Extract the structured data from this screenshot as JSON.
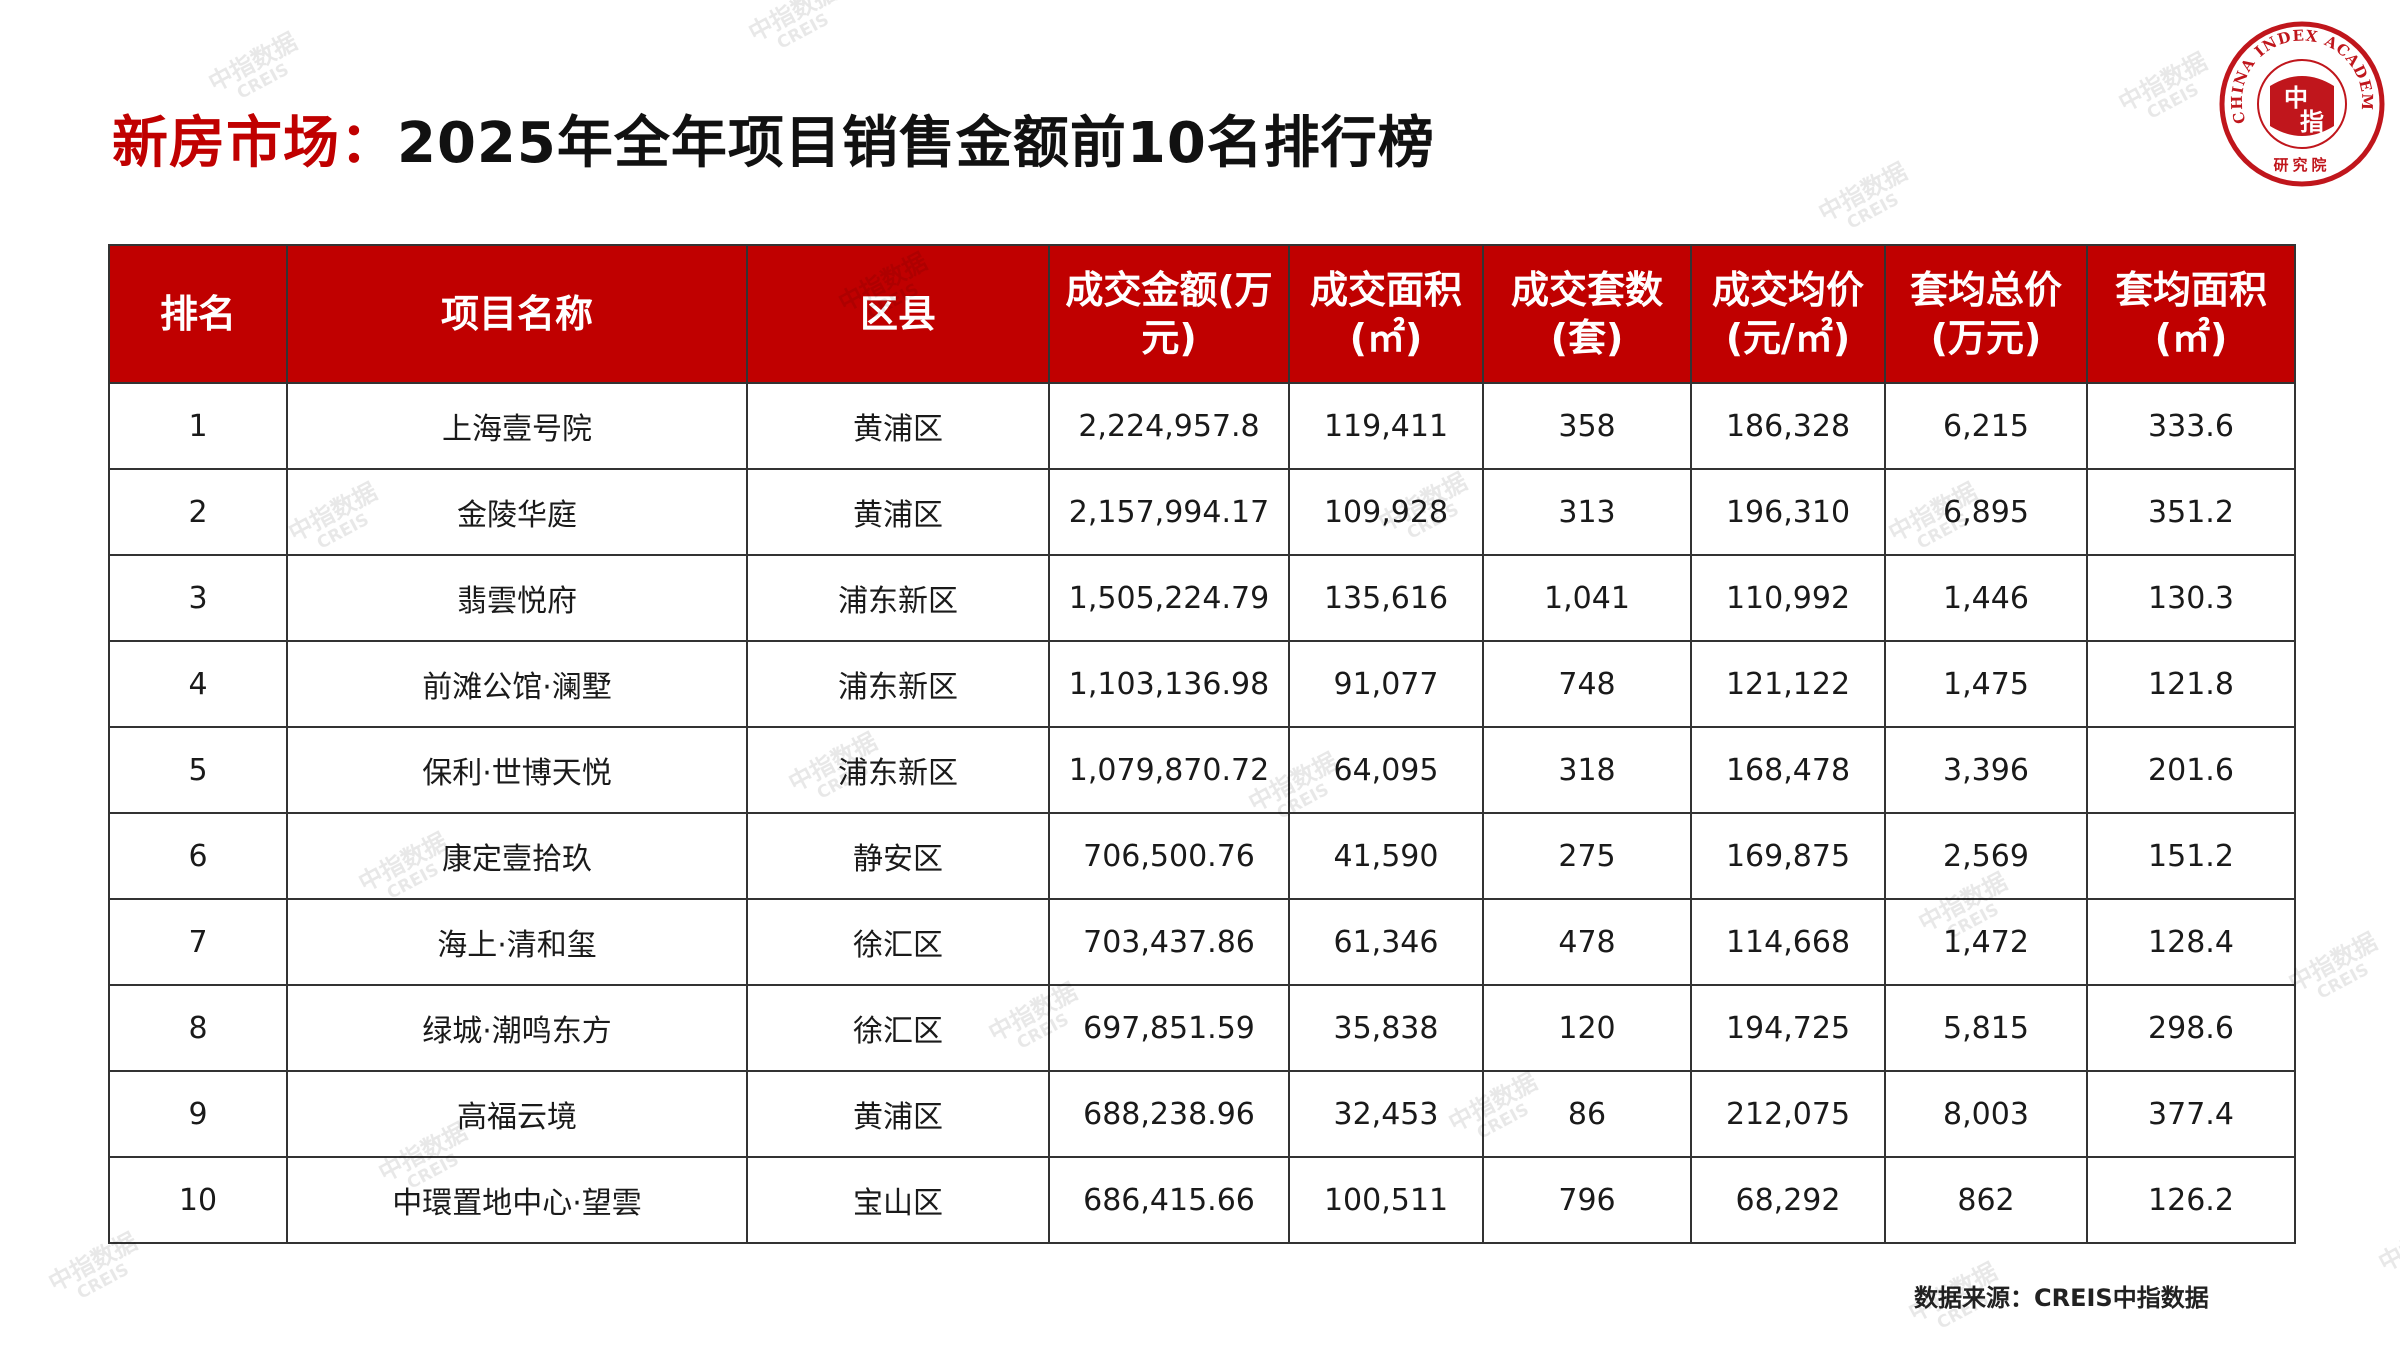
{
  "title": {
    "prefix": "新房市场：",
    "main": "2025年全年项目销售金额前10名排行榜"
  },
  "logo": {
    "ring_text": "CHINA INDEX ACADEMY",
    "center_top": "中",
    "center_bottom": "指",
    "bottom_text": "研究院",
    "color": "#c0161c"
  },
  "table": {
    "headers": [
      [
        "排名"
      ],
      [
        "项目名称"
      ],
      [
        "区县"
      ],
      [
        "成交金额(万",
        "元)"
      ],
      [
        "成交面积",
        "(㎡)"
      ],
      [
        "成交套数",
        "(套)"
      ],
      [
        "成交均价",
        "(元/㎡)"
      ],
      [
        "套均总价",
        "(万元)"
      ],
      [
        "套均面积",
        "(㎡)"
      ]
    ],
    "rows": [
      [
        "1",
        "上海壹号院",
        "黄浦区",
        "2,224,957.8",
        "119,411",
        "358",
        "186,328",
        "6,215",
        "333.6"
      ],
      [
        "2",
        "金陵华庭",
        "黄浦区",
        "2,157,994.17",
        "109,928",
        "313",
        "196,310",
        "6,895",
        "351.2"
      ],
      [
        "3",
        "翡雲悦府",
        "浦东新区",
        "1,505,224.79",
        "135,616",
        "1,041",
        "110,992",
        "1,446",
        "130.3"
      ],
      [
        "4",
        "前滩公馆·澜墅",
        "浦东新区",
        "1,103,136.98",
        "91,077",
        "748",
        "121,122",
        "1,475",
        "121.8"
      ],
      [
        "5",
        "保利·世博天悦",
        "浦东新区",
        "1,079,870.72",
        "64,095",
        "318",
        "168,478",
        "3,396",
        "201.6"
      ],
      [
        "6",
        "康定壹拾玖",
        "静安区",
        "706,500.76",
        "41,590",
        "275",
        "169,875",
        "2,569",
        "151.2"
      ],
      [
        "7",
        "海上·清和玺",
        "徐汇区",
        "703,437.86",
        "61,346",
        "478",
        "114,668",
        "1,472",
        "128.4"
      ],
      [
        "8",
        "绿城·潮鸣东方",
        "徐汇区",
        "697,851.59",
        "35,838",
        "120",
        "194,725",
        "5,815",
        "298.6"
      ],
      [
        "9",
        "高福云境",
        "黄浦区",
        "688,238.96",
        "32,453",
        "86",
        "212,075",
        "8,003",
        "377.4"
      ],
      [
        "10",
        "中環置地中心·望雲",
        "宝山区",
        "686,415.66",
        "100,511",
        "796",
        "68,292",
        "862",
        "126.2"
      ]
    ]
  },
  "source": "数据来源：CREIS中指数据",
  "watermark": {
    "line1": "中指数据",
    "line2": "CREIS"
  },
  "colors": {
    "header_bg": "#c00000",
    "title_accent": "#c00000"
  },
  "chart_data": {
    "type": "table",
    "title": "新房市场：2025年全年项目销售金额前10名排行榜",
    "columns": [
      "排名",
      "项目名称",
      "区县",
      "成交金额(万元)",
      "成交面积(㎡)",
      "成交套数(套)",
      "成交均价(元/㎡)",
      "套均总价(万元)",
      "套均面积(㎡)"
    ],
    "rows": [
      [
        1,
        "上海壹号院",
        "黄浦区",
        2224957.8,
        119411,
        358,
        186328,
        6215,
        333.6
      ],
      [
        2,
        "金陵华庭",
        "黄浦区",
        2157994.17,
        109928,
        313,
        196310,
        6895,
        351.2
      ],
      [
        3,
        "翡雲悦府",
        "浦东新区",
        1505224.79,
        135616,
        1041,
        110992,
        1446,
        130.3
      ],
      [
        4,
        "前滩公馆·澜墅",
        "浦东新区",
        1103136.98,
        91077,
        748,
        121122,
        1475,
        121.8
      ],
      [
        5,
        "保利·世博天悦",
        "浦东新区",
        1079870.72,
        64095,
        318,
        168478,
        3396,
        201.6
      ],
      [
        6,
        "康定壹拾玖",
        "静安区",
        706500.76,
        41590,
        275,
        169875,
        2569,
        151.2
      ],
      [
        7,
        "海上·清和玺",
        "徐汇区",
        703437.86,
        61346,
        478,
        114668,
        1472,
        128.4
      ],
      [
        8,
        "绿城·潮鸣东方",
        "徐汇区",
        697851.59,
        35838,
        120,
        194725,
        5815,
        298.6
      ],
      [
        9,
        "高福云境",
        "黄浦区",
        688238.96,
        32453,
        86,
        212075,
        8003,
        377.4
      ],
      [
        10,
        "中環置地中心·望雲",
        "宝山区",
        686415.66,
        100511,
        796,
        68292,
        862,
        126.2
      ]
    ]
  }
}
